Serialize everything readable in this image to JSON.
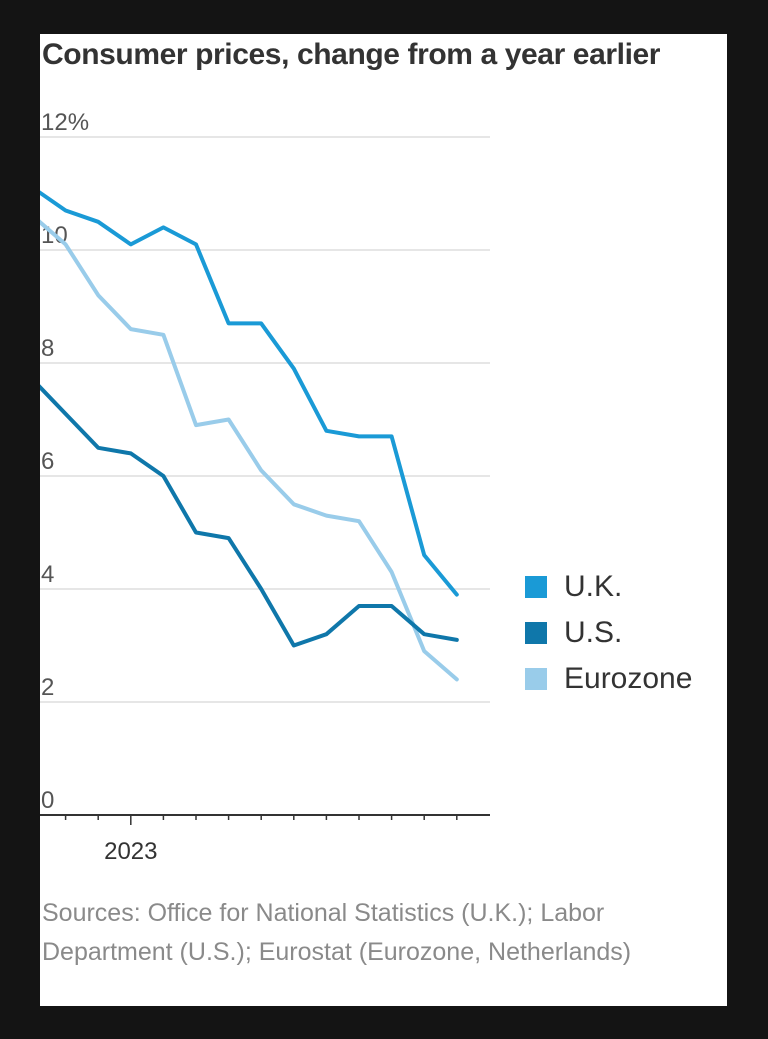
{
  "chart_data": {
    "type": "line",
    "title": "Consumer prices, change from a year earlier",
    "y_ticks": [
      "12%",
      "10",
      "8",
      "6",
      "4",
      "2",
      "0"
    ],
    "y_tick_values": [
      12,
      10,
      8,
      6,
      4,
      2,
      0
    ],
    "ylim": [
      0,
      12
    ],
    "x": [
      "2022-10",
      "2022-11",
      "2022-12",
      "2023-01",
      "2023-02",
      "2023-03",
      "2023-04",
      "2023-05",
      "2023-06",
      "2023-07",
      "2023-08",
      "2023-09",
      "2023-10",
      "2023-11"
    ],
    "x_tick_labels": [
      {
        "x": "2023-01",
        "label": "2023"
      }
    ],
    "grid": true,
    "legend_placement": "right",
    "series": [
      {
        "name": "U.K.",
        "color": "#1a9ad6",
        "values": [
          11.1,
          10.7,
          10.5,
          10.1,
          10.4,
          10.1,
          8.7,
          8.7,
          7.9,
          6.8,
          6.7,
          6.7,
          4.6,
          3.9
        ]
      },
      {
        "name": "U.S.",
        "color": "#0f77aa",
        "values": [
          7.7,
          7.1,
          6.5,
          6.4,
          6.0,
          5.0,
          4.9,
          4.0,
          3.0,
          3.2,
          3.7,
          3.7,
          3.2,
          3.1
        ]
      },
      {
        "name": "Eurozone",
        "color": "#99ccea",
        "values": [
          10.6,
          10.1,
          9.2,
          8.6,
          8.5,
          6.9,
          7.0,
          6.1,
          5.5,
          5.3,
          5.2,
          4.3,
          2.9,
          2.4
        ]
      }
    ],
    "source": "Sources: Office for National Statistics (U.K.); Labor Department (U.S.); Eurostat (Eurozone, Netherlands)"
  }
}
